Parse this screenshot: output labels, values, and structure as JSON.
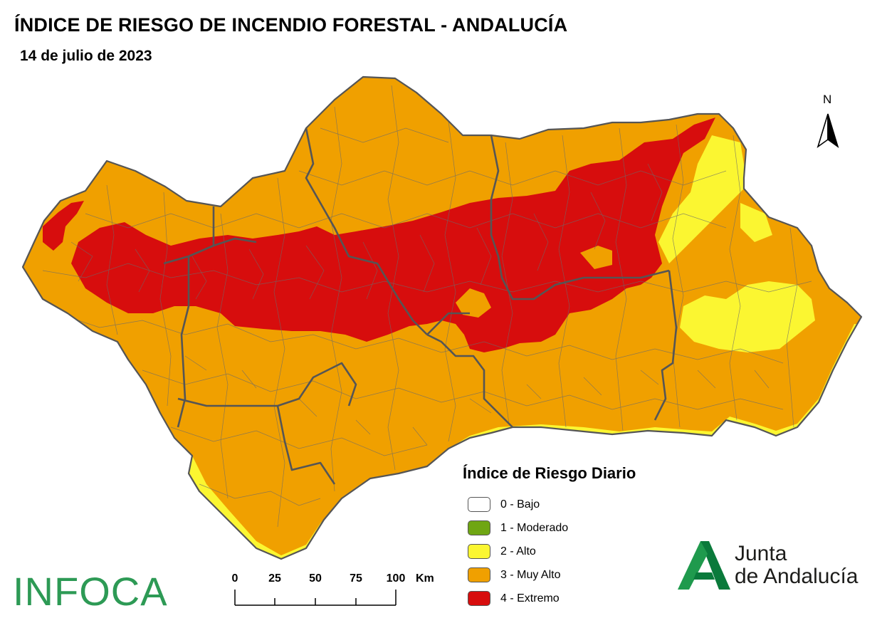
{
  "map": {
    "title": "ÍNDICE DE RIESGO DE INCENDIO FORESTAL - ANDALUCÍA",
    "subtitle": "14 de julio de 2023",
    "north_label": "N"
  },
  "legend": {
    "title": "Índice de Riesgo Diario",
    "items": [
      {
        "label": "0 - Bajo",
        "color": "#ffffff"
      },
      {
        "label": "1 - Moderado",
        "color": "#6fa613"
      },
      {
        "label": "2 - Alto",
        "color": "#fbf631"
      },
      {
        "label": "3 - Muy Alto",
        "color": "#f0a000"
      },
      {
        "label": "4 - Extremo",
        "color": "#d70d0d"
      }
    ]
  },
  "scale": {
    "ticks": [
      "0",
      "25",
      "50",
      "75",
      "100"
    ],
    "unit": "Km"
  },
  "logos": {
    "infoca": "INFOCA",
    "junta_line1": "Junta",
    "junta_line2": "de Andalucía"
  },
  "colors": {
    "muy_alto": "#f0a000",
    "extremo": "#d70d0d",
    "alto": "#fbf631",
    "boundaries": "#555555",
    "infoca_green": "#2d9a55"
  }
}
